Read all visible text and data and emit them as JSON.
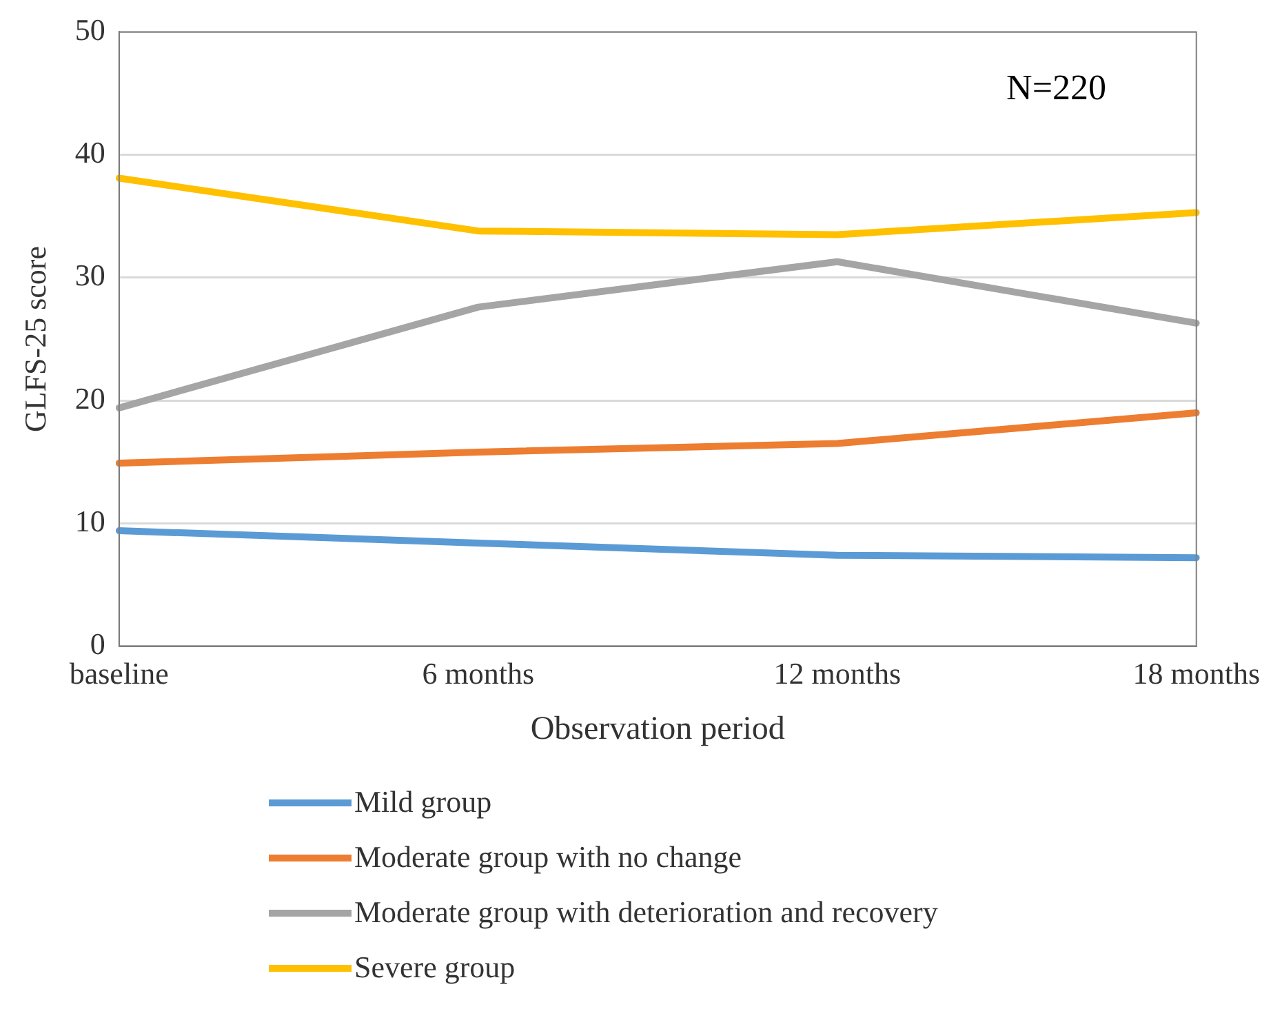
{
  "chart_data": {
    "type": "line",
    "xlabel": "Observation period",
    "ylabel": "GLFS-25 score",
    "categories": [
      "baseline",
      "6 months",
      "12 months",
      "18 months"
    ],
    "series": [
      {
        "name": "Mild group",
        "color": "#5b9bd5",
        "values": [
          9.4,
          8.4,
          7.4,
          7.2
        ]
      },
      {
        "name": "Moderate group with no change",
        "color": "#ed7d31",
        "values": [
          14.9,
          15.8,
          16.5,
          19.0
        ]
      },
      {
        "name": "Moderate group with deterioration and recovery",
        "color": "#a5a5a5",
        "values": [
          19.4,
          27.6,
          31.3,
          26.3
        ]
      },
      {
        "name": "Severe group",
        "color": "#ffc000",
        "values": [
          38.1,
          33.8,
          33.5,
          35.3
        ]
      }
    ],
    "ylim": [
      0,
      50
    ],
    "yticks": [
      0,
      10,
      20,
      30,
      40,
      50
    ],
    "grid": "y",
    "legend": "bottom",
    "marker": "none",
    "line_style": "solid",
    "annotations": [
      "N=220"
    ]
  }
}
